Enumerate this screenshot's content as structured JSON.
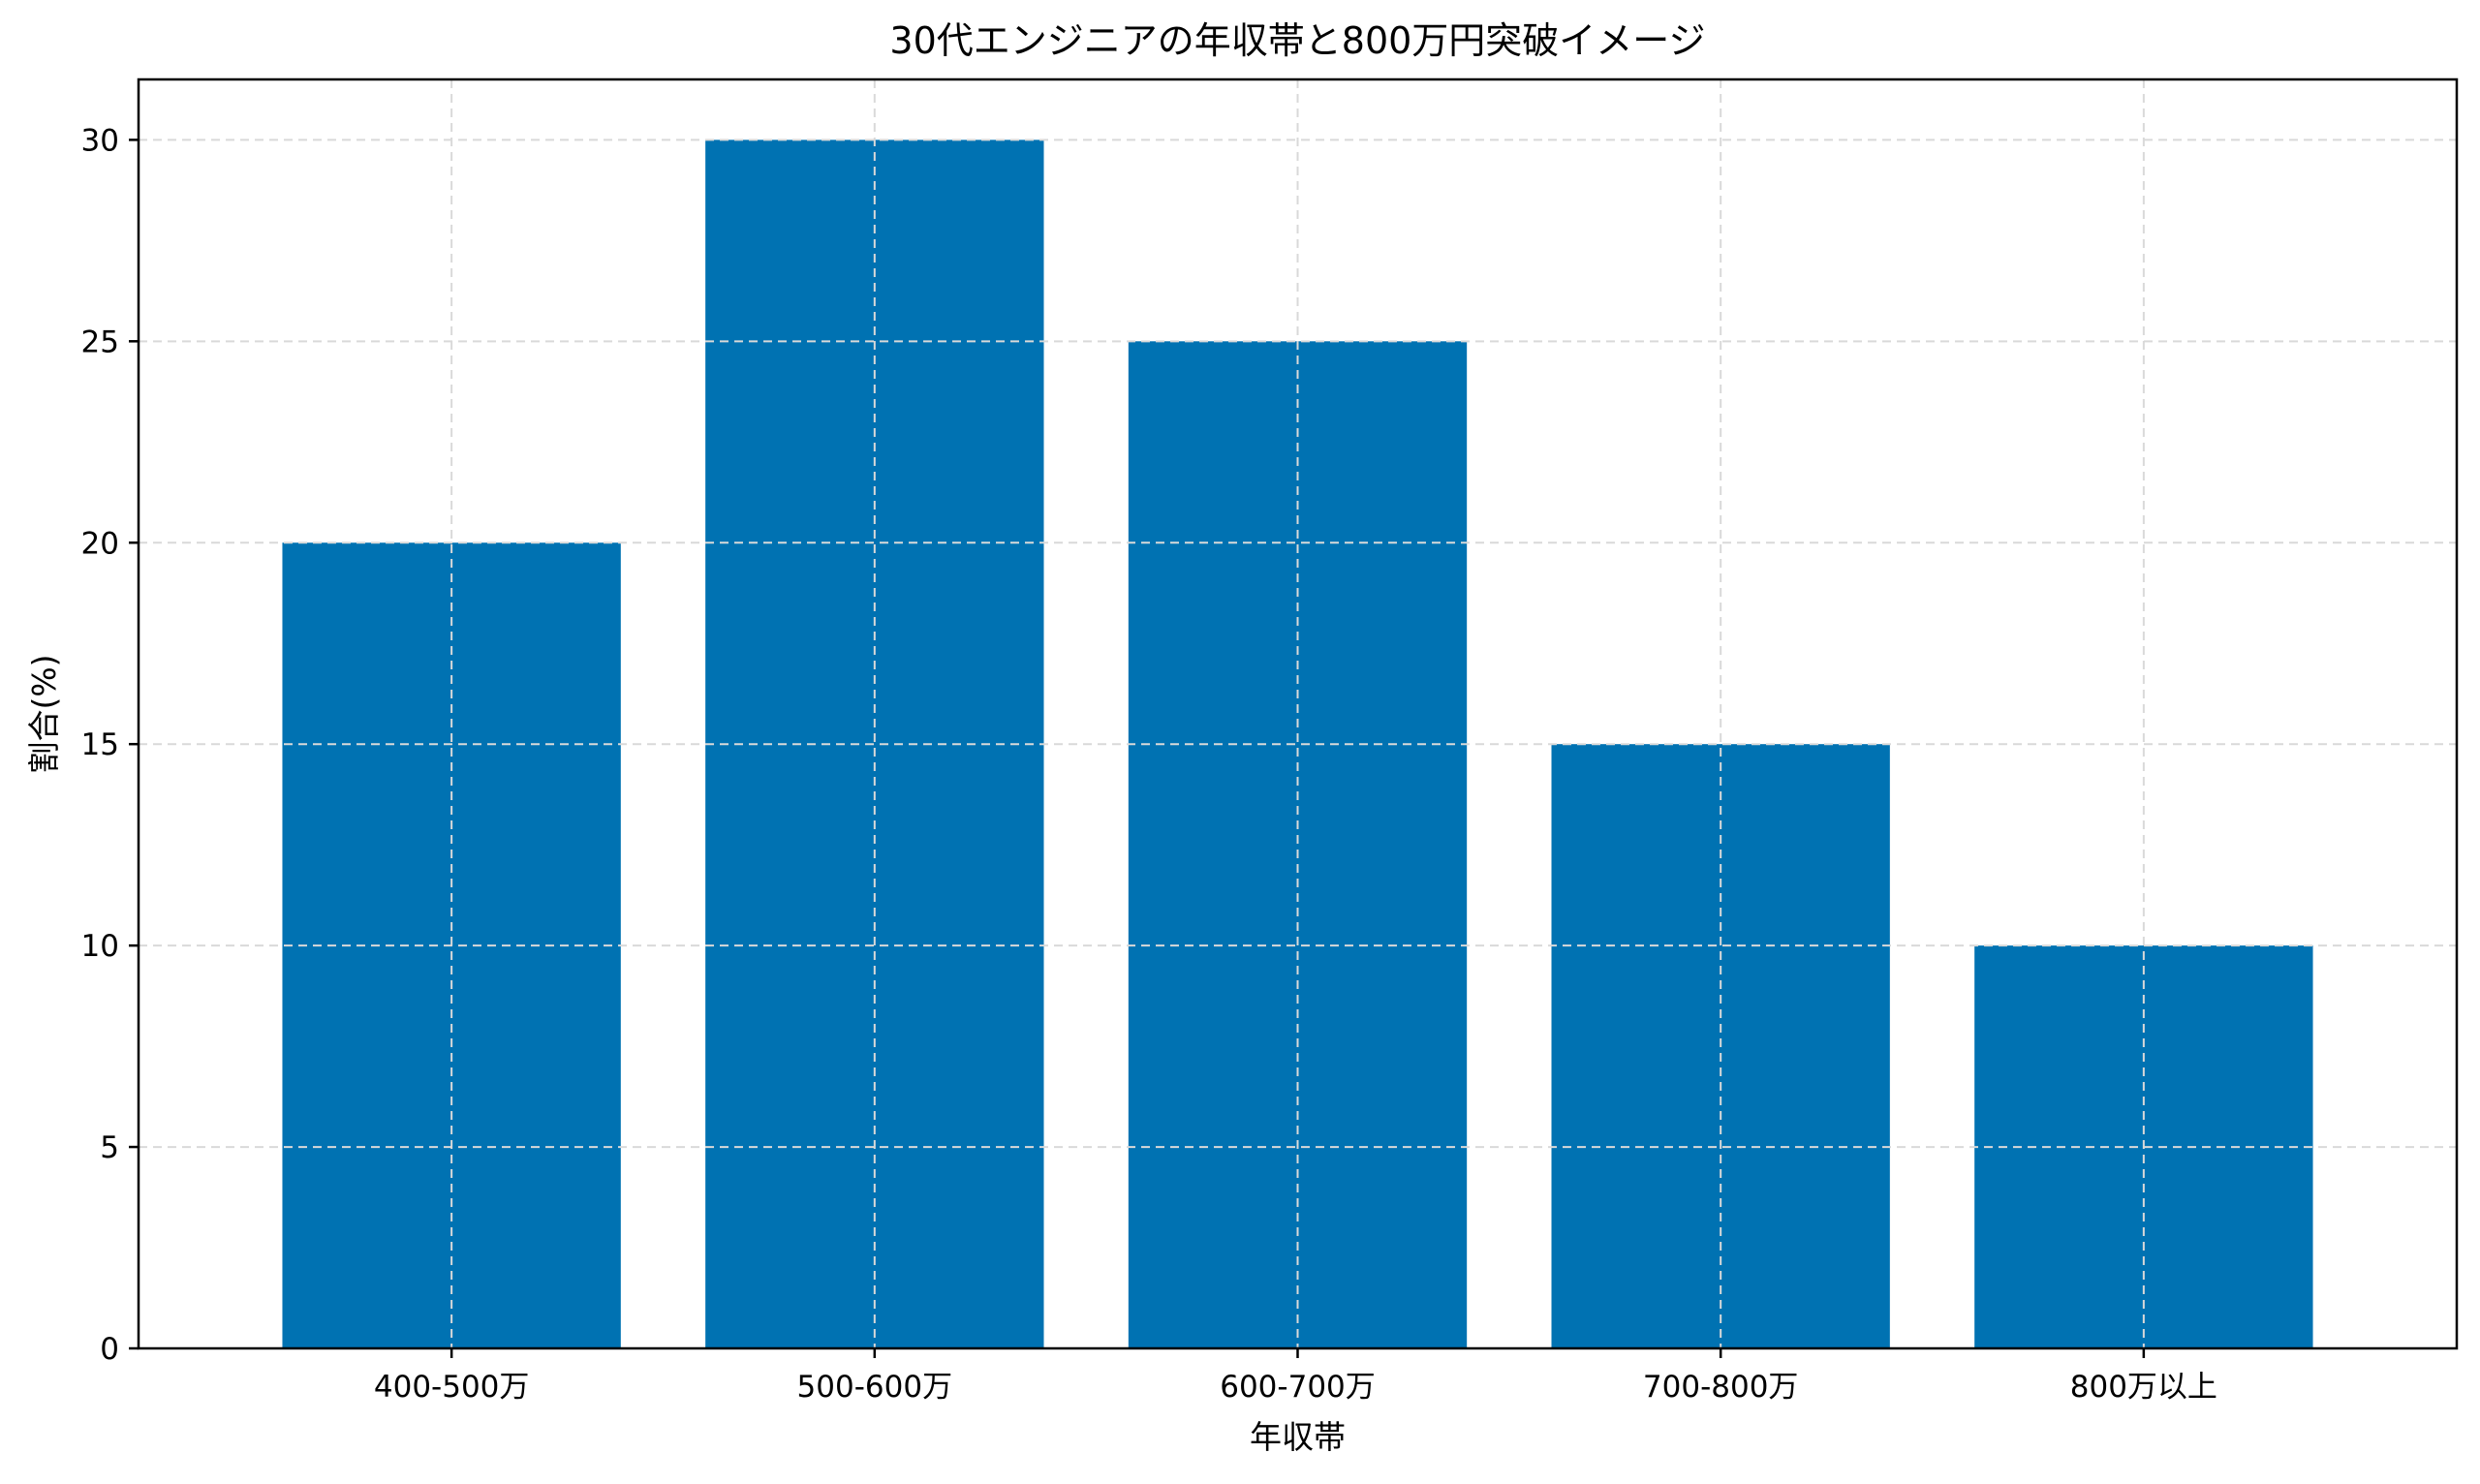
{
  "chart_data": {
    "type": "bar",
    "title": "30代エンジニアの年収帯と800万円突破イメージ",
    "xlabel": "年収帯",
    "ylabel": "割合(%)",
    "categories": [
      "400-500万",
      "500-600万",
      "600-700万",
      "700-800万",
      "800万以上"
    ],
    "values": [
      20,
      30,
      25,
      15,
      10
    ],
    "ylim": [
      0,
      31.5
    ],
    "yticks": [
      0,
      5,
      10,
      15,
      20,
      25,
      30
    ],
    "grid": true,
    "legend": "none",
    "colors": {
      "bar": "#0072b2",
      "grid": "#d9d9d9",
      "axis": "#000000"
    }
  }
}
